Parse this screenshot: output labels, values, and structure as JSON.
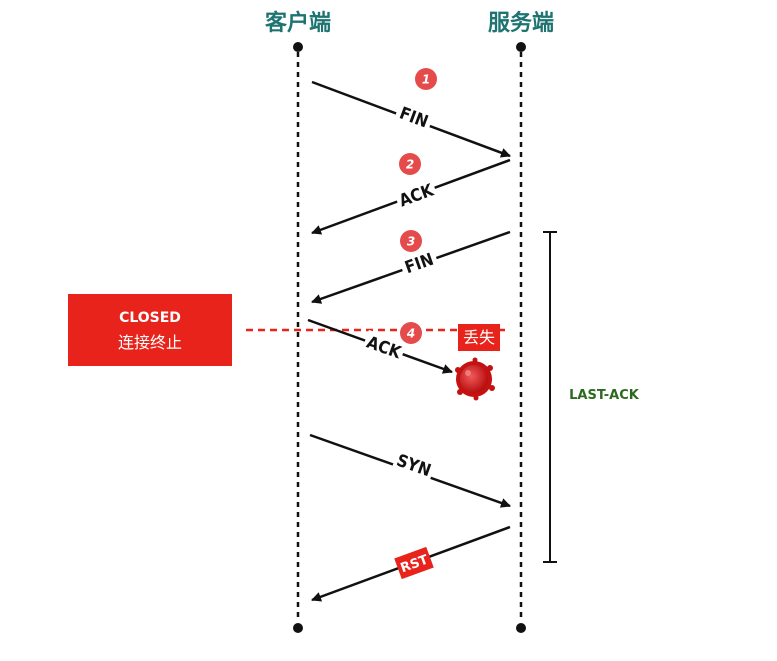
{
  "endpoints": {
    "client": "客户端",
    "server": "服务端"
  },
  "messages": {
    "fin1": "FIN",
    "ack1": "ACK",
    "fin2": "FIN",
    "ack2": "ACK",
    "syn": "SYN",
    "rst": "RST"
  },
  "steps": [
    "1",
    "2",
    "3",
    "4"
  ],
  "lost_label": "丢失",
  "closed_box": {
    "title": "CLOSED",
    "subtitle": "连接终止"
  },
  "server_state": "LAST-ACK",
  "colors": {
    "header": "#1e7470",
    "red": "#e8231b",
    "step": "#e54b4b",
    "state": "#2b6a1f",
    "line": "#111111"
  }
}
